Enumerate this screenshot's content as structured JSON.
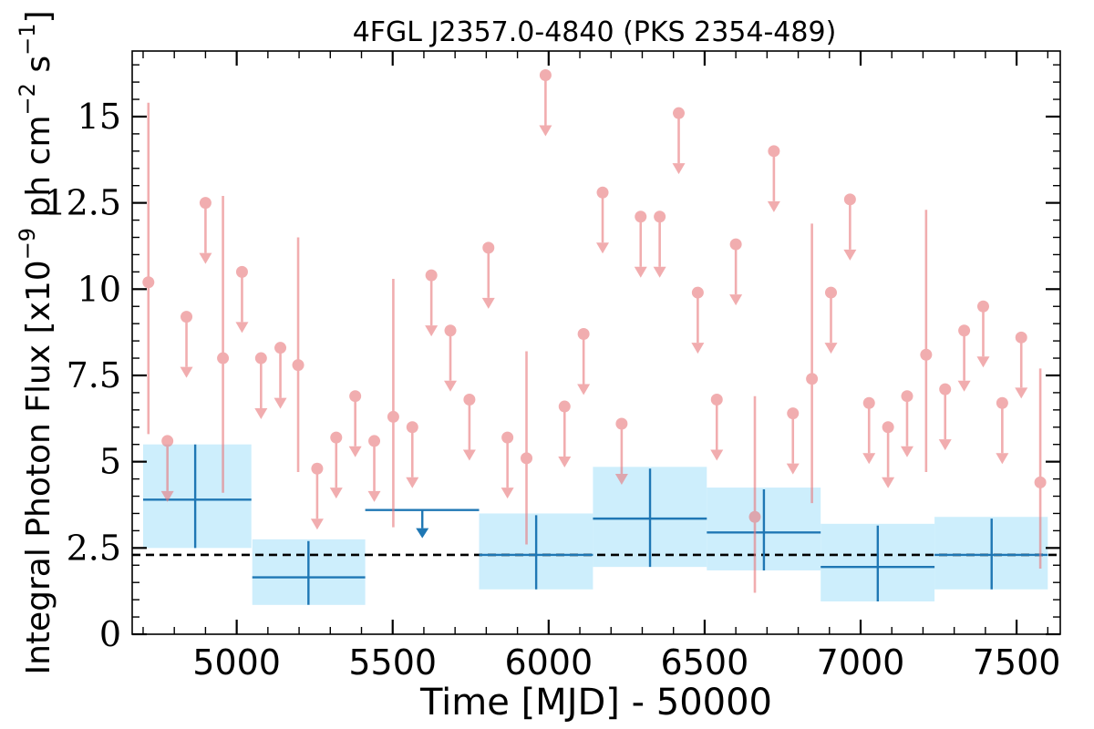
{
  "chart_data": {
    "type": "scatter",
    "title": "4FGL J2357.0-4840 (PKS 2354-489)",
    "xlabel": "Time [MJD] - 50000",
    "ylabel": "Integral Photon Flux [x10^-9 ph cm^-2 s^-1]",
    "ylabel_parts": {
      "base": "Integral Photon Flux [x10",
      "exp1": "−9",
      "mid": " ph cm",
      "exp2": "−2",
      "mid2": " s",
      "exp3": "−1",
      "end": "]"
    },
    "xlim": [
      4665,
      7640
    ],
    "ylim": [
      0,
      16.9
    ],
    "x_ticks": [
      5000,
      5500,
      6000,
      6500,
      7000,
      7500
    ],
    "x_tick_labels": [
      "5000",
      "5500",
      "6000",
      "6500",
      "7000",
      "7500"
    ],
    "y_ticks": [
      0,
      2.5,
      5,
      7.5,
      10,
      12.5,
      15
    ],
    "y_tick_labels": [
      "0",
      "2.5",
      "5",
      "7.5",
      "10",
      "12.5",
      "15"
    ],
    "x_minor_step": 100,
    "y_minor_step": 0.5,
    "colors": {
      "short_bins": "#e8777b",
      "long_bins": "#1f77b4",
      "long_bins_band": "#cdeefc",
      "mean_line": "#000000"
    },
    "mean_flux": 2.3,
    "long_bins": [
      {
        "x": 4867,
        "x_lo": 4700,
        "x_hi": 5047,
        "y": 3.9,
        "y_lo": 2.5,
        "y_hi": 5.5,
        "band_lo": 2.5,
        "band_hi": 5.5,
        "upper_limit": false
      },
      {
        "x": 5230,
        "x_lo": 5050,
        "x_hi": 5412,
        "y": 1.65,
        "y_lo": 0.85,
        "y_hi": 2.7,
        "band_lo": 0.85,
        "band_hi": 2.75,
        "upper_limit": false
      },
      {
        "x": 5595,
        "x_lo": 5412,
        "x_hi": 5777,
        "y": 3.6,
        "upper_limit": true
      },
      {
        "x": 5960,
        "x_lo": 5777,
        "x_hi": 6142,
        "y": 2.3,
        "y_lo": 1.3,
        "y_hi": 3.45,
        "band_lo": 1.3,
        "band_hi": 3.5,
        "upper_limit": false
      },
      {
        "x": 6325,
        "x_lo": 6142,
        "x_hi": 6507,
        "y": 3.35,
        "y_lo": 1.95,
        "y_hi": 4.8,
        "band_lo": 1.95,
        "band_hi": 4.85,
        "upper_limit": false
      },
      {
        "x": 6690,
        "x_lo": 6507,
        "x_hi": 6872,
        "y": 2.95,
        "y_lo": 1.85,
        "y_hi": 4.2,
        "band_lo": 1.85,
        "band_hi": 4.25,
        "upper_limit": false
      },
      {
        "x": 7055,
        "x_lo": 6872,
        "x_hi": 7237,
        "y": 1.95,
        "y_lo": 0.95,
        "y_hi": 3.15,
        "band_lo": 0.95,
        "band_hi": 3.2,
        "upper_limit": false
      },
      {
        "x": 7420,
        "x_lo": 7237,
        "x_hi": 7600,
        "y": 2.3,
        "y_lo": 1.3,
        "y_hi": 3.35,
        "band_lo": 1.3,
        "band_hi": 3.4,
        "upper_limit": false
      }
    ],
    "short_bins": [
      {
        "x": 4717,
        "y": 10.2,
        "y_lo": 5.8,
        "y_hi": 15.4,
        "upper_limit": false
      },
      {
        "x": 4778,
        "y": 5.6,
        "upper_limit": true
      },
      {
        "x": 4839,
        "y": 9.2,
        "upper_limit": true
      },
      {
        "x": 4900,
        "y": 12.5,
        "upper_limit": true
      },
      {
        "x": 4956,
        "y": 8.0,
        "y_lo": 4.1,
        "y_hi": 12.7,
        "upper_limit": false
      },
      {
        "x": 5017,
        "y": 10.5,
        "upper_limit": true
      },
      {
        "x": 5078,
        "y": 8.0,
        "upper_limit": true
      },
      {
        "x": 5140,
        "y": 8.3,
        "upper_limit": true
      },
      {
        "x": 5197,
        "y": 7.8,
        "y_lo": 4.7,
        "y_hi": 11.5,
        "upper_limit": false
      },
      {
        "x": 5258,
        "y": 4.8,
        "upper_limit": true
      },
      {
        "x": 5319,
        "y": 5.7,
        "upper_limit": true
      },
      {
        "x": 5380,
        "y": 6.9,
        "upper_limit": true
      },
      {
        "x": 5441,
        "y": 5.6,
        "upper_limit": true
      },
      {
        "x": 5502,
        "y": 6.3,
        "y_lo": 3.1,
        "y_hi": 10.3,
        "upper_limit": false
      },
      {
        "x": 5563,
        "y": 6.0,
        "upper_limit": true
      },
      {
        "x": 5624,
        "y": 10.4,
        "upper_limit": true
      },
      {
        "x": 5685,
        "y": 8.8,
        "upper_limit": true
      },
      {
        "x": 5746,
        "y": 6.8,
        "upper_limit": true
      },
      {
        "x": 5807,
        "y": 11.2,
        "upper_limit": true
      },
      {
        "x": 5868,
        "y": 5.7,
        "upper_limit": true
      },
      {
        "x": 5929,
        "y": 5.1,
        "y_lo": 2.6,
        "y_hi": 8.2,
        "upper_limit": false
      },
      {
        "x": 5990,
        "y": 16.2,
        "upper_limit": true
      },
      {
        "x": 6051,
        "y": 6.6,
        "upper_limit": true
      },
      {
        "x": 6112,
        "y": 8.7,
        "upper_limit": true
      },
      {
        "x": 6173,
        "y": 12.8,
        "upper_limit": true
      },
      {
        "x": 6234,
        "y": 6.1,
        "upper_limit": true
      },
      {
        "x": 6295,
        "y": 12.1,
        "upper_limit": true
      },
      {
        "x": 6356,
        "y": 12.1,
        "upper_limit": true
      },
      {
        "x": 6417,
        "y": 15.1,
        "upper_limit": true
      },
      {
        "x": 6478,
        "y": 9.9,
        "upper_limit": true
      },
      {
        "x": 6539,
        "y": 6.8,
        "upper_limit": true
      },
      {
        "x": 6600,
        "y": 11.3,
        "upper_limit": true
      },
      {
        "x": 6661,
        "y": 3.4,
        "y_lo": 1.2,
        "y_hi": 6.9,
        "upper_limit": false
      },
      {
        "x": 6722,
        "y": 14.0,
        "upper_limit": true
      },
      {
        "x": 6783,
        "y": 6.4,
        "upper_limit": true
      },
      {
        "x": 6844,
        "y": 7.4,
        "y_lo": 3.8,
        "y_hi": 11.9,
        "upper_limit": false
      },
      {
        "x": 6905,
        "y": 9.9,
        "upper_limit": true
      },
      {
        "x": 6966,
        "y": 12.6,
        "upper_limit": true
      },
      {
        "x": 7027,
        "y": 6.7,
        "upper_limit": true
      },
      {
        "x": 7088,
        "y": 6.0,
        "upper_limit": true
      },
      {
        "x": 7149,
        "y": 6.9,
        "upper_limit": true
      },
      {
        "x": 7210,
        "y": 8.1,
        "y_lo": 4.7,
        "y_hi": 12.3,
        "upper_limit": false
      },
      {
        "x": 7271,
        "y": 7.1,
        "upper_limit": true
      },
      {
        "x": 7332,
        "y": 8.8,
        "upper_limit": true
      },
      {
        "x": 7393,
        "y": 9.5,
        "upper_limit": true
      },
      {
        "x": 7454,
        "y": 6.7,
        "upper_limit": true
      },
      {
        "x": 7515,
        "y": 8.6,
        "upper_limit": true
      },
      {
        "x": 7576,
        "y": 4.4,
        "y_lo": 1.9,
        "y_hi": 7.7,
        "upper_limit": false
      }
    ]
  }
}
